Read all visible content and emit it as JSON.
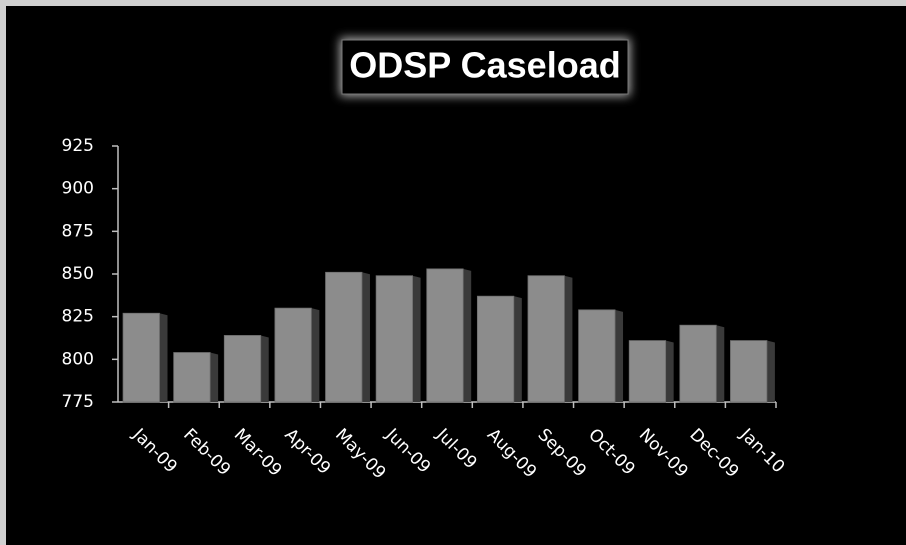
{
  "chart_data": {
    "type": "bar",
    "title": "ODSP Caseload",
    "categories": [
      "Jan-09",
      "Feb-09",
      "Mar-09",
      "Apr-09",
      "May-09",
      "Jun-09",
      "Jul-09",
      "Aug-09",
      "Sep-09",
      "Oct-09",
      "Nov-09",
      "Dec-09",
      "Jan-10"
    ],
    "values": [
      827,
      804,
      814,
      830,
      851,
      849,
      853,
      837,
      849,
      829,
      811,
      820,
      811
    ],
    "color": "#8c8c8c",
    "ylim": [
      775,
      925
    ],
    "yticks": [
      775,
      800,
      825,
      850,
      875,
      900,
      925
    ],
    "grid": false
  }
}
